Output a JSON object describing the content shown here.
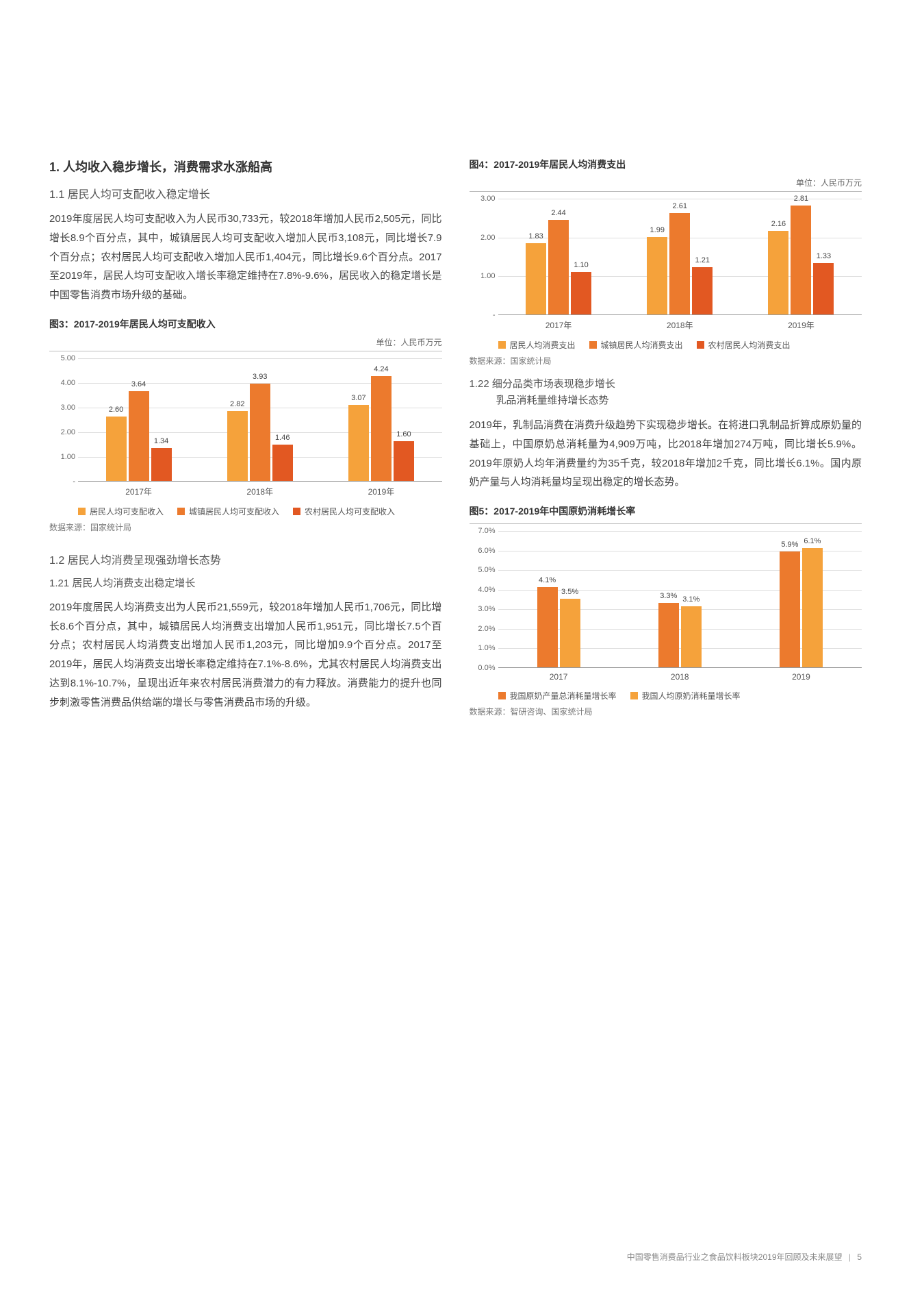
{
  "section1": {
    "title": "1. 人均收入稳步增长，消费需求水涨船高",
    "sub11_title": "1.1 居民人均可支配收入稳定增长",
    "sub11_body": "2019年度居民人均可支配收入为人民币30,733元，较2018年增加人民币2,505元，同比增长8.9个百分点，其中，城镇居民人均可支配收入增加人民币3,108元，同比增长7.9个百分点；农村居民人均可支配收入增加人民币1,404元，同比增长9.6个百分点。2017至2019年，居民人均可支配收入增长率稳定维持在7.8%-9.6%，居民收入的稳定增长是中国零售消费市场升级的基础。",
    "sub12_title": "1.2 居民人均消费呈现强劲增长态势",
    "sub121_title": "1.21 居民人均消费支出稳定增长",
    "sub121_body": "2019年度居民人均消费支出为人民币21,559元，较2018年增加人民币1,706元，同比增长8.6个百分点，其中，城镇居民人均消费支出增加人民币1,951元，同比增长7.5个百分点；农村居民人均消费支出增加人民币1,203元，同比增加9.9个百分点。2017至2019年，居民人均消费支出增长率稳定维持在7.1%-8.6%，尤其农村居民人均消费支出达到8.1%-10.7%，呈现出近年来农村居民消费潜力的有力释放。消费能力的提升也同步刺激零售消费品供给端的增长与零售消费品市场的升级。",
    "sub122_title_l1": "1.22 细分品类市场表现稳步增长",
    "sub122_title_l2": "乳品消耗量维持增长态势",
    "sub122_body": "2019年，乳制品消费在消费升级趋势下实现稳步增长。在将进口乳制品折算成原奶量的基础上，中国原奶总消耗量为4,909万吨，比2018年增加274万吨，同比增长5.9%。2019年原奶人均年消费量约为35千克，较2018年增加2千克，同比增长6.1%。国内原奶产量与人均消耗量均呈现出稳定的增长态势。"
  },
  "chart3": {
    "title": "图3：2017-2019年居民人均可支配收入",
    "unit": "单位：人民币万元",
    "ymax": 5.0,
    "yticks": [
      "-",
      "1.00",
      "2.00",
      "3.00",
      "4.00",
      "5.00"
    ],
    "categories": [
      "2017年",
      "2018年",
      "2019年"
    ],
    "series": [
      {
        "name": "居民人均可支配收入",
        "color": "#f5a23b",
        "values": [
          2.6,
          2.82,
          3.07
        ]
      },
      {
        "name": "城镇居民人均可支配收入",
        "color": "#ec7a2d",
        "values": [
          3.64,
          3.93,
          4.24
        ]
      },
      {
        "name": "农村居民人均可支配收入",
        "color": "#e25822",
        "values": [
          1.34,
          1.46,
          1.6
        ]
      }
    ],
    "source": "数据来源：国家统计局"
  },
  "chart4": {
    "title": "图4：2017-2019年居民人均消费支出",
    "unit": "单位：人民币万元",
    "ymax": 3.0,
    "yticks": [
      "-",
      "1.00",
      "2.00",
      "3.00"
    ],
    "categories": [
      "2017年",
      "2018年",
      "2019年"
    ],
    "series": [
      {
        "name": "居民人均消费支出",
        "color": "#f5a23b",
        "values": [
          1.83,
          1.99,
          2.16
        ]
      },
      {
        "name": "城镇居民人均消费支出",
        "color": "#ec7a2d",
        "values": [
          2.44,
          2.61,
          2.81
        ]
      },
      {
        "name": "农村居民人均消费支出",
        "color": "#e25822",
        "values": [
          1.1,
          1.21,
          1.33
        ]
      }
    ],
    "source": "数据来源：国家统计局"
  },
  "chart5": {
    "title": "图5：2017-2019年中国原奶消耗增长率",
    "ymax": 7.0,
    "yticks": [
      "0.0%",
      "1.0%",
      "2.0%",
      "3.0%",
      "4.0%",
      "5.0%",
      "6.0%",
      "7.0%"
    ],
    "categories": [
      "2017",
      "2018",
      "2019"
    ],
    "series": [
      {
        "name": "我国原奶产量总消耗量增长率",
        "color": "#ec7a2d",
        "values": [
          4.1,
          3.3,
          5.9
        ],
        "labels": [
          "4.1%",
          "3.3%",
          "5.9%"
        ]
      },
      {
        "name": "我国人均原奶消耗量增长率",
        "color": "#f5a23b",
        "values": [
          3.5,
          3.1,
          6.1
        ],
        "labels": [
          "3.5%",
          "3.1%",
          "6.1%"
        ]
      }
    ],
    "source": "数据来源：智研咨询、国家统计局"
  },
  "footer": {
    "text": "中国零售消费品行业之食品饮料板块2019年回顾及未来展望",
    "page": "5"
  }
}
